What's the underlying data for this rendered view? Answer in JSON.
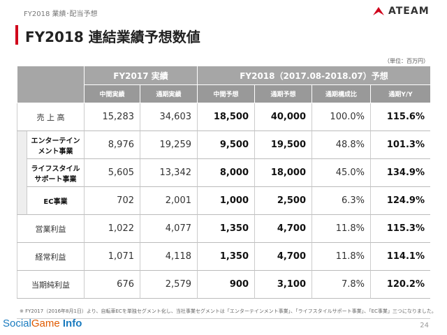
{
  "header": {
    "section": "FY2018 業績･配当予想",
    "title": "FY2018 連結業績予想数値",
    "logo": "ATEAM"
  },
  "unit": "（単位：百万円）",
  "table": {
    "group_headers": [
      "FY2017 実績",
      "FY2018（2017.08-2018.07）予想"
    ],
    "sub_headers": [
      "中間実績",
      "通期実績",
      "中間予想",
      "通期予想",
      "通期構成比",
      "通期Y/Y"
    ],
    "rows": [
      {
        "label": [
          "売 上 高"
        ],
        "values": [
          "15,283",
          "34,603",
          "18,500",
          "40,000",
          "100.0%",
          "115.6%"
        ]
      },
      {
        "label": [
          "エンターテイン",
          "メント事業"
        ],
        "values": [
          "8,976",
          "19,259",
          "9,500",
          "19,500",
          "48.8%",
          "101.3%"
        ]
      },
      {
        "label": [
          "ライフスタイル",
          "サポート事業"
        ],
        "values": [
          "5,605",
          "13,342",
          "8,000",
          "18,000",
          "45.0%",
          "134.9%"
        ]
      },
      {
        "label": [
          "EC事業"
        ],
        "values": [
          "702",
          "2,001",
          "1,000",
          "2,500",
          "6.3%",
          "124.9%"
        ]
      },
      {
        "label": [
          "営業利益"
        ],
        "values": [
          "1,022",
          "4,077",
          "1,350",
          "4,700",
          "11.8%",
          "115.3%"
        ]
      },
      {
        "label": [
          "経常利益"
        ],
        "values": [
          "1,071",
          "4,118",
          "1,350",
          "4,700",
          "11.8%",
          "114.1%"
        ]
      },
      {
        "label": [
          "当期純利益"
        ],
        "values": [
          "676",
          "2,579",
          "900",
          "3,100",
          "7.8%",
          "120.2%"
        ]
      }
    ]
  },
  "footnote": "※ FY2017（2016年8月1日）より、自転車ECを単独セグメント化し、当社事業セグメントは「エンターテインメント事業」、「ライフスタイルサポート事業」、「EC事業」三つになりました。",
  "footer": {
    "brand": [
      "Social",
      "Game",
      "Info"
    ],
    "page": "24"
  }
}
